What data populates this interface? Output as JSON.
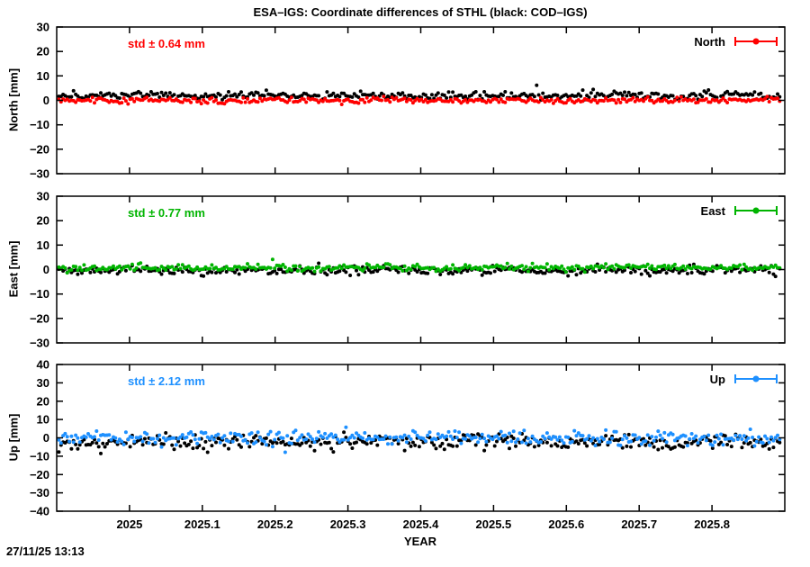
{
  "page": {
    "timestamp": "27/11/25 13:13",
    "background": "#ffffff"
  },
  "chart_data": {
    "type": "scatter",
    "title": "ESA–IGS: Coordinate differences of STHL (black: COD–IGS)",
    "xlabel": "YEAR",
    "xlim": [
      2024.9,
      2025.9
    ],
    "xticks": [
      2025,
      2025.1,
      2025.2,
      2025.3,
      2025.4,
      2025.5,
      2025.6,
      2025.7,
      2025.8
    ],
    "xtick_labels": [
      "2025",
      "2025.1",
      "2025.2",
      "2025.3",
      "2025.4",
      "2025.5",
      "2025.6",
      "2025.7",
      "2025.8"
    ],
    "x_data_range": [
      2024.903,
      2025.893
    ],
    "grid": false,
    "legend_position": "top-right-inside",
    "panels": [
      {
        "name": "north",
        "ylabel": "North [mm]",
        "ylim": [
          -30,
          30
        ],
        "yticks": [
          30,
          20,
          10,
          0,
          -10,
          -20,
          -30
        ],
        "std_label": "std ± 0.64 mm",
        "std_value_mm": 0.64,
        "legend_label": "North",
        "color": "#ff0000",
        "series": [
          {
            "name": "COD–IGS",
            "color": "#000000",
            "mean_mm": 2.0,
            "std_mm": 0.85,
            "n_points": 345
          },
          {
            "name": "ESA–IGS",
            "color": "#ff0000",
            "mean_mm": 0.0,
            "std_mm": 0.64,
            "n_points": 345
          }
        ]
      },
      {
        "name": "east",
        "ylabel": "East [mm]",
        "ylim": [
          -30,
          30
        ],
        "yticks": [
          30,
          20,
          10,
          0,
          -10,
          -20,
          -30
        ],
        "std_label": "std ± 0.77 mm",
        "std_value_mm": 0.77,
        "legend_label": "East",
        "color": "#00b400",
        "series": [
          {
            "name": "COD–IGS",
            "color": "#000000",
            "mean_mm": -0.4,
            "std_mm": 0.95,
            "n_points": 345
          },
          {
            "name": "ESA–IGS",
            "color": "#00b400",
            "mean_mm": 0.8,
            "std_mm": 0.77,
            "n_points": 345
          }
        ]
      },
      {
        "name": "up",
        "ylabel": "Up [mm]",
        "ylim": [
          -40,
          40
        ],
        "yticks": [
          40,
          30,
          20,
          10,
          0,
          -10,
          -20,
          -30,
          -40
        ],
        "std_label": "std ± 2.12 mm",
        "std_value_mm": 2.12,
        "legend_label": "Up",
        "color": "#1e90ff",
        "series": [
          {
            "name": "COD–IGS",
            "color": "#000000",
            "mean_mm": -2.2,
            "std_mm": 2.3,
            "n_points": 345
          },
          {
            "name": "ESA–IGS",
            "color": "#1e90ff",
            "mean_mm": 0.0,
            "std_mm": 2.12,
            "n_points": 345
          }
        ]
      }
    ]
  }
}
